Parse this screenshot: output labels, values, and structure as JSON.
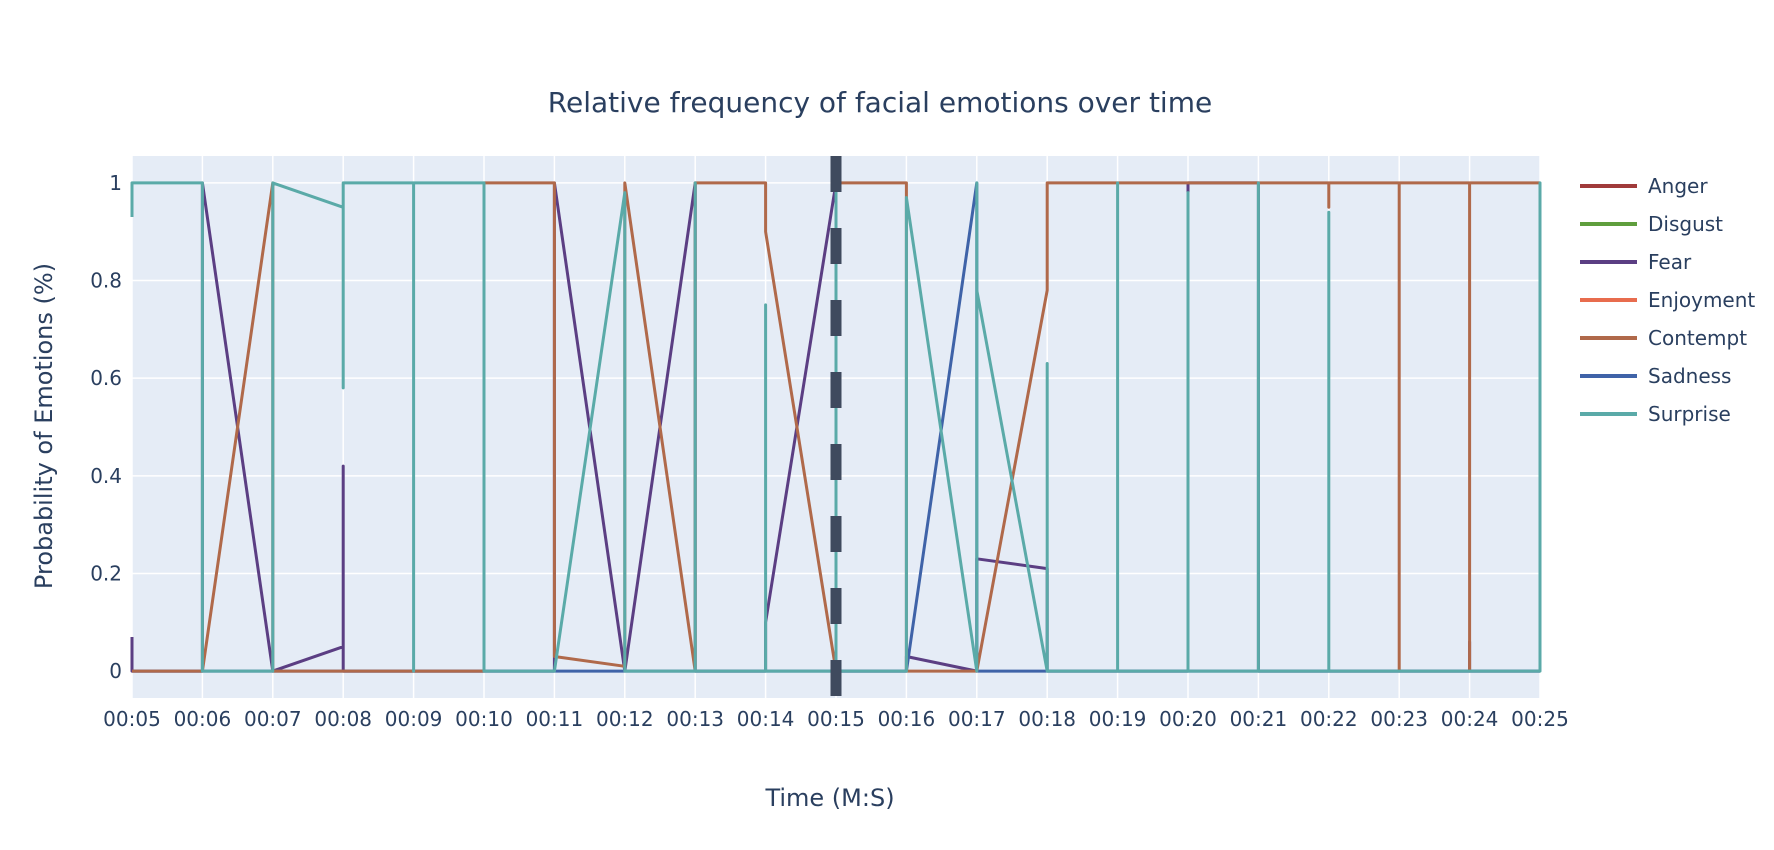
{
  "chart_data": {
    "type": "line",
    "title": "Relative frequency of facial emotions over time",
    "xlabel": "Time (M:S)",
    "ylabel": "Probability of Emotions (%)",
    "x_ticks": [
      "00:05",
      "00:06",
      "00:07",
      "00:08",
      "00:09",
      "00:10",
      "00:11",
      "00:12",
      "00:13",
      "00:14",
      "00:15",
      "00:16",
      "00:17",
      "00:18",
      "00:19",
      "00:20",
      "00:21",
      "00:22",
      "00:23",
      "00:24",
      "00:25"
    ],
    "y_ticks": [
      "0",
      "0.2",
      "0.4",
      "0.6",
      "0.8",
      "1"
    ],
    "xlim": [
      "00:05",
      "00:25"
    ],
    "ylim": [
      -0.055,
      1.055
    ],
    "grid": true,
    "legend_position": "right",
    "marker_line": {
      "x": "00:15",
      "style": "dashed",
      "color": "#3f4a5e"
    },
    "series": [
      {
        "name": "Anger",
        "color": "#a03a3a",
        "points": []
      },
      {
        "name": "Disgust",
        "color": "#5f9e3d",
        "points": []
      },
      {
        "name": "Fear",
        "color": "#5b3e83",
        "points": [
          [
            "00:05",
            0.07
          ],
          [
            "00:05",
            0
          ],
          [
            "00:06",
            0
          ],
          [
            "00:06",
            1
          ],
          [
            "00:07",
            0
          ],
          [
            "00:08",
            0.05
          ],
          [
            "00:08",
            0.42
          ],
          [
            "00:08",
            0
          ],
          [
            "00:11",
            0
          ],
          [
            "00:11",
            1
          ],
          [
            "00:12",
            0
          ],
          [
            "00:13",
            1
          ],
          [
            "00:13",
            0
          ],
          [
            "00:14",
            0
          ],
          [
            "00:14",
            0.1
          ],
          [
            "00:15",
            1
          ],
          [
            "00:15",
            0
          ],
          [
            "00:16",
            0
          ],
          [
            "00:16",
            0.03
          ],
          [
            "00:17",
            0
          ],
          [
            "00:17",
            0.23
          ],
          [
            "00:18",
            0.21
          ],
          [
            "00:18",
            0
          ],
          [
            "00:20",
            0
          ],
          [
            "00:20",
            1
          ],
          [
            "00:21",
            1
          ],
          [
            "00:21",
            0
          ],
          [
            "00:24",
            0
          ],
          [
            "00:24",
            0.06
          ],
          [
            "00:24",
            0
          ],
          [
            "00:25",
            0
          ]
        ]
      },
      {
        "name": "Enjoyment",
        "color": "#e86c4e",
        "points": []
      },
      {
        "name": "Contempt",
        "color": "#b0694a",
        "points": [
          [
            "00:05",
            0
          ],
          [
            "00:06",
            0
          ],
          [
            "00:07",
            1
          ],
          [
            "00:07",
            0
          ],
          [
            "00:10",
            0
          ],
          [
            "00:10",
            1
          ],
          [
            "00:11",
            1
          ],
          [
            "00:11",
            0.03
          ],
          [
            "00:12",
            0.01
          ],
          [
            "00:12",
            1
          ],
          [
            "00:13",
            0
          ],
          [
            "00:13",
            1
          ],
          [
            "00:14",
            1
          ],
          [
            "00:14",
            0.9
          ],
          [
            "00:15",
            0
          ],
          [
            "00:15",
            1
          ],
          [
            "00:16",
            1
          ],
          [
            "00:16",
            0
          ],
          [
            "00:17",
            0
          ],
          [
            "00:18",
            0.78
          ],
          [
            "00:18",
            1
          ],
          [
            "00:22",
            1
          ],
          [
            "00:22",
            0.95
          ],
          [
            "00:22",
            1
          ],
          [
            "00:23",
            1
          ],
          [
            "00:23",
            0
          ],
          [
            "00:23",
            1
          ],
          [
            "00:24",
            1
          ],
          [
            "00:24",
            0
          ],
          [
            "00:24",
            1
          ],
          [
            "00:25",
            1
          ]
        ]
      },
      {
        "name": "Sadness",
        "color": "#3f63a8",
        "points": [
          [
            "00:05",
            0
          ],
          [
            "00:16",
            0
          ],
          [
            "00:17",
            1
          ],
          [
            "00:17",
            0
          ],
          [
            "00:25",
            0
          ]
        ]
      },
      {
        "name": "Surprise",
        "color": "#5aaaa8",
        "points": [
          [
            "00:05",
            0.93
          ],
          [
            "00:05",
            1
          ],
          [
            "00:06",
            1
          ],
          [
            "00:06",
            0
          ],
          [
            "00:07",
            0
          ],
          [
            "00:07",
            1
          ],
          [
            "00:08",
            0.95
          ],
          [
            "00:08",
            0.58
          ],
          [
            "00:08",
            1
          ],
          [
            "00:09",
            1
          ],
          [
            "00:09",
            0
          ],
          [
            "00:09",
            1
          ],
          [
            "00:10",
            1
          ],
          [
            "00:10",
            0
          ],
          [
            "00:11",
            0
          ],
          [
            "00:12",
            0.98
          ],
          [
            "00:12",
            0
          ],
          [
            "00:13",
            0
          ],
          [
            "00:13",
            1
          ],
          [
            "00:13",
            0
          ],
          [
            "00:14",
            0
          ],
          [
            "00:14",
            0.75
          ],
          [
            "00:14",
            0
          ],
          [
            "00:15",
            0
          ],
          [
            "00:15",
            1
          ],
          [
            "00:15",
            0
          ],
          [
            "00:16",
            0
          ],
          [
            "00:16",
            0.97
          ],
          [
            "00:17",
            0
          ],
          [
            "00:17",
            1
          ],
          [
            "00:17",
            0.78
          ],
          [
            "00:18",
            0
          ],
          [
            "00:18",
            0.63
          ],
          [
            "00:18",
            0
          ],
          [
            "00:19",
            0
          ],
          [
            "00:19",
            1
          ],
          [
            "00:19",
            0
          ],
          [
            "00:20",
            0
          ],
          [
            "00:20",
            0.98
          ],
          [
            "00:20",
            0
          ],
          [
            "00:21",
            0
          ],
          [
            "00:21",
            1
          ],
          [
            "00:21",
            0
          ],
          [
            "00:22",
            0
          ],
          [
            "00:22",
            0.94
          ],
          [
            "00:22",
            0
          ],
          [
            "00:25",
            0
          ],
          [
            "00:25",
            1
          ],
          [
            "00:25",
            0
          ]
        ]
      }
    ]
  }
}
